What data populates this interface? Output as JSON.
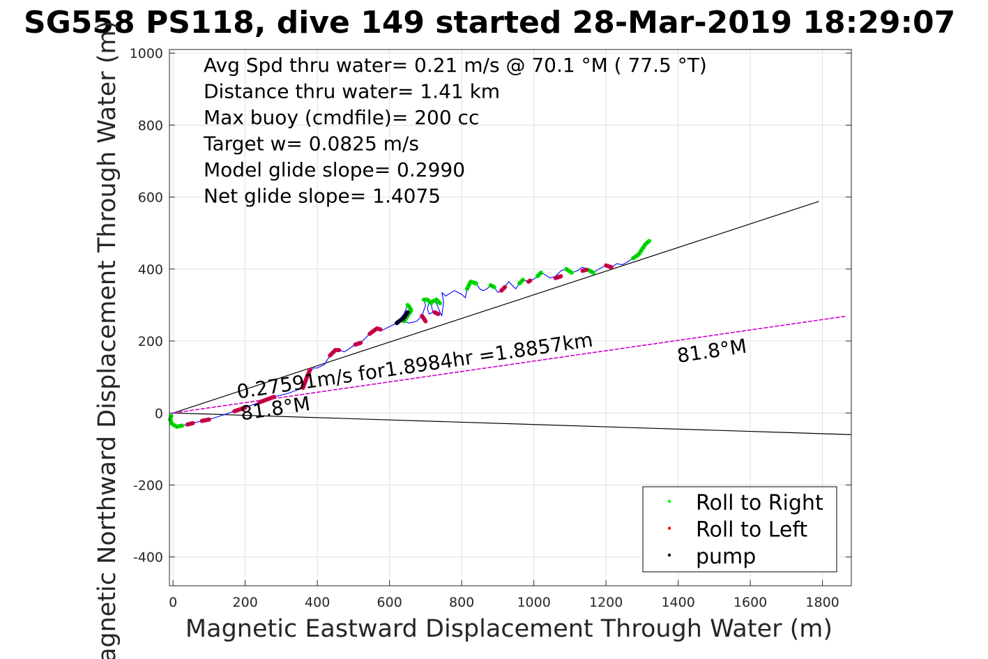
{
  "chart_data": {
    "type": "line",
    "title": "SG558 PS118, dive 149 started 28-Mar-2019 18:29:07",
    "xlabel": "Magnetic Eastward Displacement Through Water (m)",
    "ylabel": "Magnetic Northward Displacement Through Water (m)",
    "xlim": [
      -10,
      1880
    ],
    "ylim": [
      -480,
      1010
    ],
    "xticks": [
      0,
      200,
      400,
      600,
      800,
      1000,
      1200,
      1400,
      1600,
      1800
    ],
    "yticks": [
      -400,
      -200,
      0,
      200,
      400,
      600,
      800,
      1000
    ],
    "grid": true,
    "info_lines": [
      "Avg Spd thru water=  0.21 m/s @  70.1 °M ( 77.5 °T)",
      "Distance thru water=  1.41 km",
      "Max buoy (cmdfile)= 200 cc",
      "Target w= 0.0825 m/s",
      "Model glide slope= 0.2990",
      "Net glide slope= 1.4075"
    ],
    "annotations": [
      {
        "text": "0.27591m/s for1.8984hr =1.8857km",
        "x": 180,
        "y": 40,
        "rotation_deg": -8.4
      },
      {
        "text": "81.8°M",
        "x": 190,
        "y": -20,
        "rotation_deg": -8.4
      },
      {
        "text": "81.8°M",
        "x": 1400,
        "y": 140,
        "rotation_deg": -8.4
      }
    ],
    "reference_lines": [
      {
        "name": "upper-bound",
        "color": "#000000",
        "x": [
          0,
          1790
        ],
        "y": [
          0,
          588
        ]
      },
      {
        "name": "lower-bound",
        "color": "#000000",
        "x": [
          0,
          1880
        ],
        "y": [
          0,
          -60
        ]
      },
      {
        "name": "heading",
        "color": "#cc00cc",
        "x": [
          0,
          1865
        ],
        "y": [
          0,
          269
        ]
      }
    ],
    "track": {
      "color": "#0000ff",
      "x": [
        0,
        -5,
        -8,
        -3,
        10,
        25,
        40,
        55,
        80,
        110,
        140,
        170,
        200,
        240,
        280,
        320,
        360,
        375,
        390,
        400,
        420,
        435,
        445,
        460,
        475,
        490,
        505,
        520,
        545,
        565,
        580,
        600,
        620,
        640,
        650,
        655,
        660,
        650,
        640,
        655,
        675,
        690,
        700,
        695,
        705,
        715,
        720,
        710,
        705,
        710,
        720,
        730,
        740,
        745,
        750,
        745,
        755,
        780,
        800,
        810,
        815,
        825,
        840,
        850,
        860,
        870,
        880,
        890,
        900,
        910,
        920,
        930,
        940,
        950,
        960,
        970,
        985,
        1000,
        1010,
        1020,
        1030,
        1045,
        1060,
        1075,
        1090,
        1105,
        1120,
        1135,
        1150,
        1165,
        1180,
        1200,
        1215,
        1230,
        1245,
        1260,
        1275,
        1290,
        1300,
        1310,
        1320
      ],
      "y": [
        0,
        -8,
        -18,
        -30,
        -38,
        -35,
        -32,
        -28,
        -22,
        -15,
        -5,
        5,
        15,
        30,
        45,
        55,
        70,
        110,
        125,
        125,
        135,
        160,
        175,
        175,
        170,
        180,
        190,
        195,
        220,
        235,
        230,
        240,
        250,
        275,
        300,
        295,
        285,
        270,
        255,
        250,
        255,
        270,
        300,
        315,
        315,
        305,
        280,
        275,
        290,
        310,
        315,
        305,
        280,
        270,
        310,
        335,
        325,
        340,
        330,
        320,
        345,
        365,
        360,
        345,
        340,
        345,
        355,
        350,
        335,
        340,
        350,
        365,
        355,
        345,
        360,
        370,
        365,
        372,
        380,
        390,
        385,
        375,
        380,
        395,
        400,
        390,
        395,
        405,
        398,
        390,
        400,
        410,
        405,
        415,
        412,
        420,
        430,
        440,
        455,
        470,
        478
      ]
    },
    "roll_right_segments": [
      [
        [
          -5,
          -8
        ],
        [
          -8,
          -18
        ],
        [
          -3,
          -30
        ],
        [
          10,
          -38
        ],
        [
          25,
          -35
        ]
      ],
      [
        [
          640,
          255
        ],
        [
          650,
          270
        ],
        [
          660,
          285
        ],
        [
          655,
          295
        ],
        [
          650,
          300
        ]
      ],
      [
        [
          695,
          315
        ],
        [
          705,
          315
        ],
        [
          715,
          305
        ]
      ],
      [
        [
          720,
          310
        ],
        [
          730,
          315
        ],
        [
          740,
          305
        ]
      ],
      [
        [
          815,
          345
        ],
        [
          825,
          365
        ],
        [
          840,
          360
        ]
      ],
      [
        [
          880,
          355
        ],
        [
          890,
          350
        ]
      ],
      [
        [
          960,
          360
        ],
        [
          970,
          370
        ]
      ],
      [
        [
          1010,
          380
        ],
        [
          1020,
          390
        ]
      ],
      [
        [
          1090,
          400
        ],
        [
          1105,
          390
        ]
      ],
      [
        [
          1150,
          398
        ],
        [
          1165,
          390
        ]
      ],
      [
        [
          1275,
          430
        ],
        [
          1290,
          440
        ],
        [
          1300,
          455
        ],
        [
          1310,
          470
        ],
        [
          1320,
          478
        ]
      ]
    ],
    "roll_left_segments": [
      [
        [
          40,
          -32
        ],
        [
          55,
          -28
        ]
      ],
      [
        [
          80,
          -22
        ],
        [
          100,
          -18
        ]
      ],
      [
        [
          170,
          5
        ],
        [
          200,
          15
        ]
      ],
      [
        [
          240,
          30
        ],
        [
          280,
          45
        ]
      ],
      [
        [
          360,
          70
        ],
        [
          375,
          110
        ],
        [
          380,
          120
        ]
      ],
      [
        [
          435,
          160
        ],
        [
          450,
          175
        ],
        [
          460,
          175
        ]
      ],
      [
        [
          505,
          190
        ],
        [
          520,
          195
        ]
      ],
      [
        [
          545,
          220
        ],
        [
          565,
          235
        ],
        [
          575,
          232
        ]
      ],
      [
        [
          690,
          270
        ],
        [
          700,
          255
        ]
      ],
      [
        [
          725,
          280
        ],
        [
          735,
          275
        ]
      ],
      [
        [
          910,
          340
        ],
        [
          920,
          350
        ]
      ],
      [
        [
          985,
          365
        ],
        [
          990,
          368
        ]
      ],
      [
        [
          1060,
          375
        ],
        [
          1075,
          380
        ]
      ],
      [
        [
          1135,
          395
        ],
        [
          1145,
          398
        ]
      ],
      [
        [
          1200,
          410
        ],
        [
          1215,
          405
        ]
      ]
    ],
    "pump_segments": [
      [
        [
          620,
          250
        ],
        [
          640,
          265
        ],
        [
          650,
          280
        ]
      ]
    ],
    "legend": {
      "position": "bottom-right",
      "entries": [
        {
          "label": "Roll to Right",
          "color": "#00ff00"
        },
        {
          "label": "Roll to Left",
          "color": "#ff0000"
        },
        {
          "label": "pump",
          "color": "#000000"
        }
      ]
    }
  }
}
